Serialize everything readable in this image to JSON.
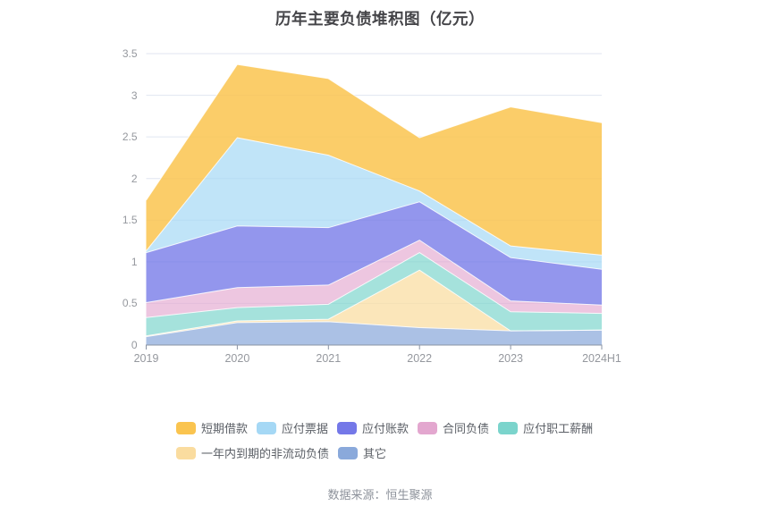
{
  "title": "历年主要负债堆积图（亿元）",
  "footer": "数据来源：恒生聚源",
  "colors": {
    "background": "#FFFFFF",
    "title_text": "#454549",
    "axis_line": "#8A93A3",
    "tick_label": "#95989E",
    "grid_line": "#E0E6F0",
    "legend_text": "#5B5F66",
    "footer_text": "#8D929B",
    "band_separator": "rgba(255,255,255,0.85)"
  },
  "chart_data": {
    "type": "area",
    "stacked": true,
    "stack_note": "series listed in legend order; last series is at the bottom of the stack, first series on top",
    "title": "历年主要负债堆积图（亿元）",
    "xlabel": "",
    "ylabel": "",
    "categories": [
      "2019",
      "2020",
      "2021",
      "2022",
      "2023",
      "2024H1"
    ],
    "series": [
      {
        "name": "短期借款",
        "color": "#FAC44F",
        "area_rgba": "rgba(250,196,79,0.85)",
        "values": [
          0.61,
          0.88,
          0.92,
          0.64,
          1.67,
          1.59
        ]
      },
      {
        "name": "应付票据",
        "color": "#A5D8F5",
        "area_rgba": "rgba(165,216,245,0.70)",
        "values": [
          0.02,
          1.06,
          0.87,
          0.13,
          0.14,
          0.17
        ]
      },
      {
        "name": "应付账款",
        "color": "#7478E8",
        "area_rgba": "rgba(116,120,232,0.78)",
        "values": [
          0.6,
          0.74,
          0.69,
          0.46,
          0.52,
          0.43
        ]
      },
      {
        "name": "合同负债",
        "color": "#E3A7CF",
        "area_rgba": "rgba(227,167,207,0.65)",
        "values": [
          0.18,
          0.24,
          0.23,
          0.15,
          0.13,
          0.1
        ]
      },
      {
        "name": "应付职工薪酬",
        "color": "#7BD4CC",
        "area_rgba": "rgba(123,212,204,0.68)",
        "values": [
          0.22,
          0.16,
          0.18,
          0.21,
          0.23,
          0.2
        ]
      },
      {
        "name": "一年内到期的非流动负债",
        "color": "#FADC9F",
        "area_rgba": "rgba(250,220,159,0.72)",
        "values": [
          0.01,
          0.02,
          0.03,
          0.69,
          0.0,
          0.0
        ]
      },
      {
        "name": "其它",
        "color": "#8AA9DB",
        "area_rgba": "rgba(138,169,219,0.72)",
        "values": [
          0.1,
          0.27,
          0.28,
          0.21,
          0.17,
          0.18
        ]
      }
    ],
    "ylim": [
      0,
      3.5
    ],
    "ytick_step": 0.5,
    "yticks": [
      "0",
      "0.5",
      "1",
      "1.5",
      "2",
      "2.5",
      "3",
      "3.5"
    ],
    "grid": true,
    "legend_position": "bottom"
  }
}
